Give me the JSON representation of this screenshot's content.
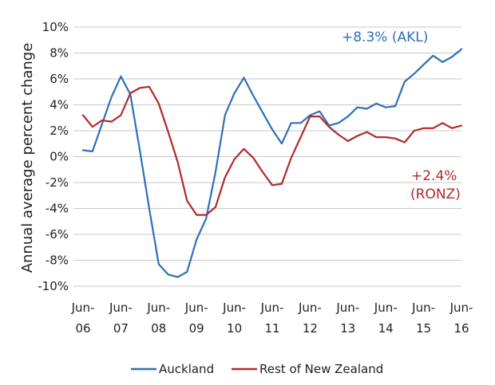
{
  "chart_data": {
    "type": "line",
    "ylabel": "Annual average percent change",
    "ylim": [
      -10,
      10
    ],
    "y_ticks": [
      "10%",
      "8%",
      "6%",
      "4%",
      "2%",
      "0%",
      "-2%",
      "-4%",
      "-6%",
      "-8%",
      "-10%"
    ],
    "x_ticks": [
      {
        "line1": "Jun-",
        "line2": "06"
      },
      {
        "line1": "Jun-",
        "line2": "07"
      },
      {
        "line1": "Jun-",
        "line2": "08"
      },
      {
        "line1": "Jun-",
        "line2": "09"
      },
      {
        "line1": "Jun-",
        "line2": "10"
      },
      {
        "line1": "Jun-",
        "line2": "11"
      },
      {
        "line1": "Jun-",
        "line2": "12"
      },
      {
        "line1": "Jun-",
        "line2": "13"
      },
      {
        "line1": "Jun-",
        "line2": "14"
      },
      {
        "line1": "Jun-",
        "line2": "15"
      },
      {
        "line1": "Jun-",
        "line2": "16"
      }
    ],
    "grid": "horizontal",
    "legend_position": "bottom",
    "series": [
      {
        "name": "Auckland",
        "color": "#2e6fba",
        "values": [
          0.5,
          0.4,
          2.5,
          4.6,
          6.2,
          4.8,
          0.5,
          -4.0,
          -8.3,
          -9.1,
          -9.3,
          -8.9,
          -6.4,
          -4.8,
          -1.2,
          3.2,
          4.9,
          6.1,
          4.7,
          3.4,
          2.1,
          1.0,
          2.6,
          2.6,
          3.2,
          3.5,
          2.4,
          2.6,
          3.1,
          3.8,
          3.7,
          4.1,
          3.8,
          3.9,
          5.8,
          6.4,
          7.1,
          7.8,
          7.3,
          7.7,
          8.3
        ]
      },
      {
        "name": "Rest of New Zealand",
        "color": "#b22a2a",
        "values": [
          3.2,
          2.3,
          2.8,
          2.7,
          3.2,
          4.9,
          5.3,
          5.4,
          4.1,
          1.9,
          -0.4,
          -3.4,
          -4.5,
          -4.5,
          -3.9,
          -1.6,
          -0.2,
          0.6,
          -0.1,
          -1.2,
          -2.2,
          -2.1,
          -0.1,
          1.5,
          3.1,
          3.1,
          2.3,
          1.7,
          1.2,
          1.6,
          1.9,
          1.5,
          1.5,
          1.4,
          1.1,
          2.0,
          2.2,
          2.2,
          2.6,
          2.2,
          2.4
        ]
      }
    ],
    "annotations": [
      {
        "text": "+8.3% (AKL)",
        "color": "#2e6fba"
      },
      {
        "text": "+2.4%",
        "color": "#b22a2a"
      },
      {
        "text": "(RONZ)",
        "color": "#b22a2a"
      }
    ]
  }
}
